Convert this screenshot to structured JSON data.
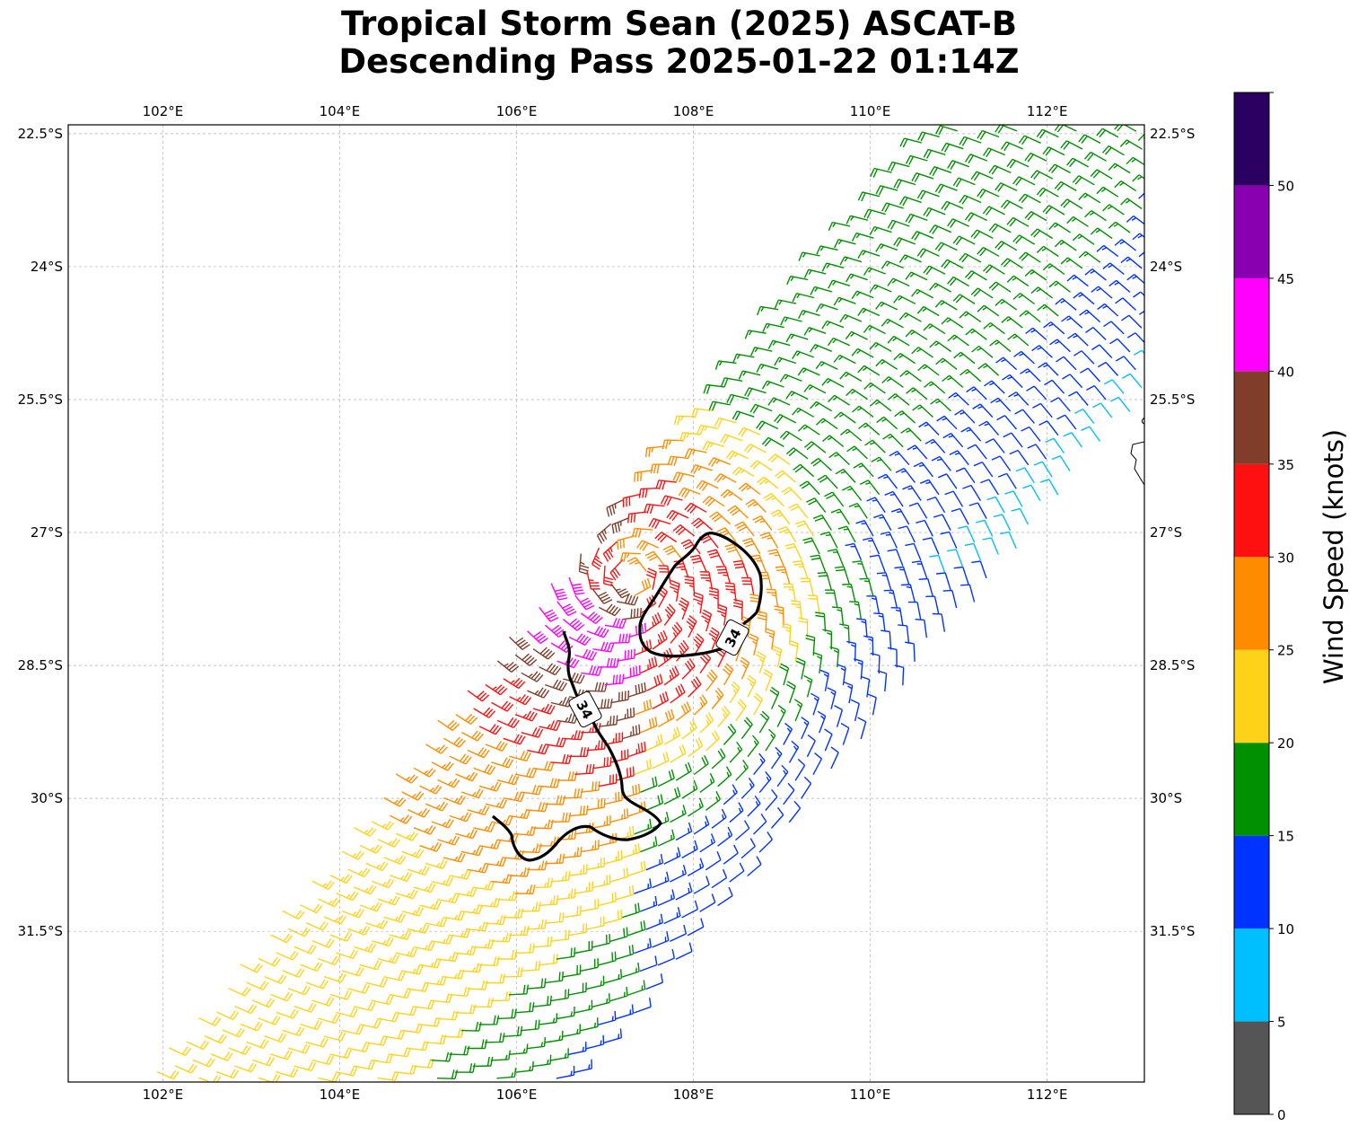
{
  "title": {
    "line1": "Tropical Storm Sean (2025) ASCAT-B",
    "line2": "Descending Pass 2025-01-22 01:14Z"
  },
  "map": {
    "lon_range": [
      100.93,
      113.1
    ],
    "lat_range": [
      -33.2,
      -22.4
    ],
    "lon_ticks": [
      102,
      104,
      106,
      108,
      110,
      112
    ],
    "lat_ticks": [
      -22.5,
      -24,
      -25.5,
      -27,
      -28.5,
      -30,
      -31.5
    ],
    "lon_tick_labels": [
      "102°E",
      "104°E",
      "106°E",
      "108°E",
      "110°E",
      "112°E"
    ],
    "lat_tick_labels": [
      "22.5°S",
      "24°S",
      "25.5°S",
      "27°S",
      "28.5°S",
      "30°S",
      "31.5°S"
    ],
    "gridlines": true
  },
  "storm": {
    "center_lon": 107.3,
    "center_lat": -27.5
  },
  "contour": {
    "label": "34",
    "label_1": "34"
  },
  "colorbar": {
    "label": "Wind Speed (knots)",
    "ticks": [
      "0",
      "5",
      "10",
      "15",
      "20",
      "25",
      "30",
      "35",
      "40",
      "45",
      "50"
    ],
    "bins": [
      {
        "min": 0,
        "max": 5,
        "color": "#555555"
      },
      {
        "min": 5,
        "max": 10,
        "color": "#00bfff"
      },
      {
        "min": 10,
        "max": 15,
        "color": "#0033ff"
      },
      {
        "min": 15,
        "max": 20,
        "color": "#009000"
      },
      {
        "min": 20,
        "max": 25,
        "color": "#ffd21a"
      },
      {
        "min": 25,
        "max": 30,
        "color": "#ff8c00"
      },
      {
        "min": 30,
        "max": 35,
        "color": "#ff1010"
      },
      {
        "min": 35,
        "max": 40,
        "color": "#803e2a"
      },
      {
        "min": 40,
        "max": 45,
        "color": "#ff00ff"
      },
      {
        "min": 45,
        "max": 50,
        "color": "#8800b0"
      },
      {
        "min": 50,
        "max": 55,
        "color": "#2a0060"
      }
    ]
  }
}
